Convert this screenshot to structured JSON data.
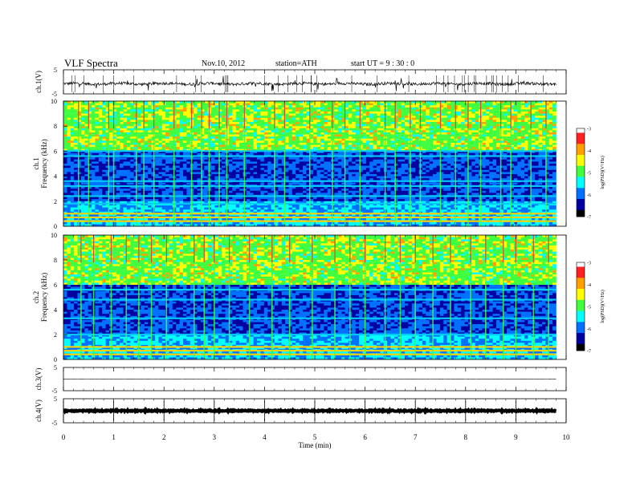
{
  "header": {
    "title": "VLF Spectra",
    "date": "Nov.10, 2012",
    "station": "station=ATH",
    "start_time": "start  UT  =   9 : 30 : 0"
  },
  "colorbar": {
    "label": "log(PSD)(V²/Hz)",
    "ticks": [
      "-3",
      "-4",
      "-5",
      "-6",
      "-7"
    ],
    "colors": [
      "#ffffff",
      "#ff2020",
      "#ffa000",
      "#ffff00",
      "#40ff40",
      "#00ffff",
      "#0070ff",
      "#0000a0",
      "#000000"
    ]
  },
  "chart_data": [
    {
      "type": "line",
      "ylabel": "ch.1(V)",
      "ylim": [
        -5,
        5
      ],
      "yticks": [
        "5",
        "-5"
      ],
      "description_values": {
        "baseline_V": -0.8
      }
    },
    {
      "type": "heatmap",
      "ylabel_channel": "ch.1",
      "ylabel": "Frequency  (kHz)",
      "ylim": [
        0,
        10
      ],
      "yticks": [
        "10",
        "8",
        "6",
        "4",
        "2",
        "0"
      ],
      "bands_khz": [
        0.4,
        0.7,
        1.0,
        1.8,
        2.4,
        3.2,
        3.6,
        5.6,
        6.0
      ],
      "bursts_min": [
        0.3,
        0.5,
        0.9,
        1.0,
        1.45,
        1.6,
        1.8,
        2.2,
        2.55,
        2.75,
        2.9,
        3.1,
        3.25,
        3.6,
        4.2,
        4.4,
        4.9,
        5.35,
        5.6,
        5.9,
        6.4,
        6.6,
        6.9,
        7.1,
        7.5,
        7.8,
        8.05,
        8.3,
        8.7,
        8.9,
        9.3,
        9.6
      ]
    },
    {
      "type": "heatmap",
      "ylabel_channel": "ch.2",
      "ylabel": "Frequency  (kHz)",
      "ylim": [
        0,
        10
      ],
      "yticks": [
        "10",
        "8",
        "6",
        "4",
        "2",
        "0"
      ],
      "bands_khz": [
        0.4,
        0.7,
        1.0,
        2.0,
        3.3,
        4.8,
        5.6
      ],
      "bursts_min": [
        0.35,
        0.6,
        0.95,
        1.25,
        1.5,
        1.75,
        2.05,
        2.6,
        2.8,
        3.0,
        3.3,
        3.7,
        4.15,
        4.5,
        4.95,
        5.4,
        5.7,
        6.0,
        6.4,
        6.7,
        7.0,
        7.35,
        7.7,
        8.1,
        8.4,
        8.75,
        9.0,
        9.35,
        9.65
      ]
    },
    {
      "type": "line",
      "ylabel": "ch.3(V)",
      "ylim": [
        -5,
        5
      ],
      "yticks": [
        "5",
        "-5"
      ],
      "description_values": {
        "baseline_V": 0
      }
    },
    {
      "type": "line",
      "ylabel": "ch.4(V)",
      "ylim": [
        -5,
        5
      ],
      "yticks": [
        "5",
        "-5"
      ],
      "description_values": {
        "baseline_V": 0
      }
    }
  ],
  "xaxis": {
    "label": "Time  (min)",
    "xlim": [
      0,
      10
    ],
    "data_end_min": 9.8,
    "ticks": [
      "0",
      "1",
      "2",
      "3",
      "4",
      "5",
      "6",
      "7",
      "8",
      "9",
      "10"
    ]
  }
}
